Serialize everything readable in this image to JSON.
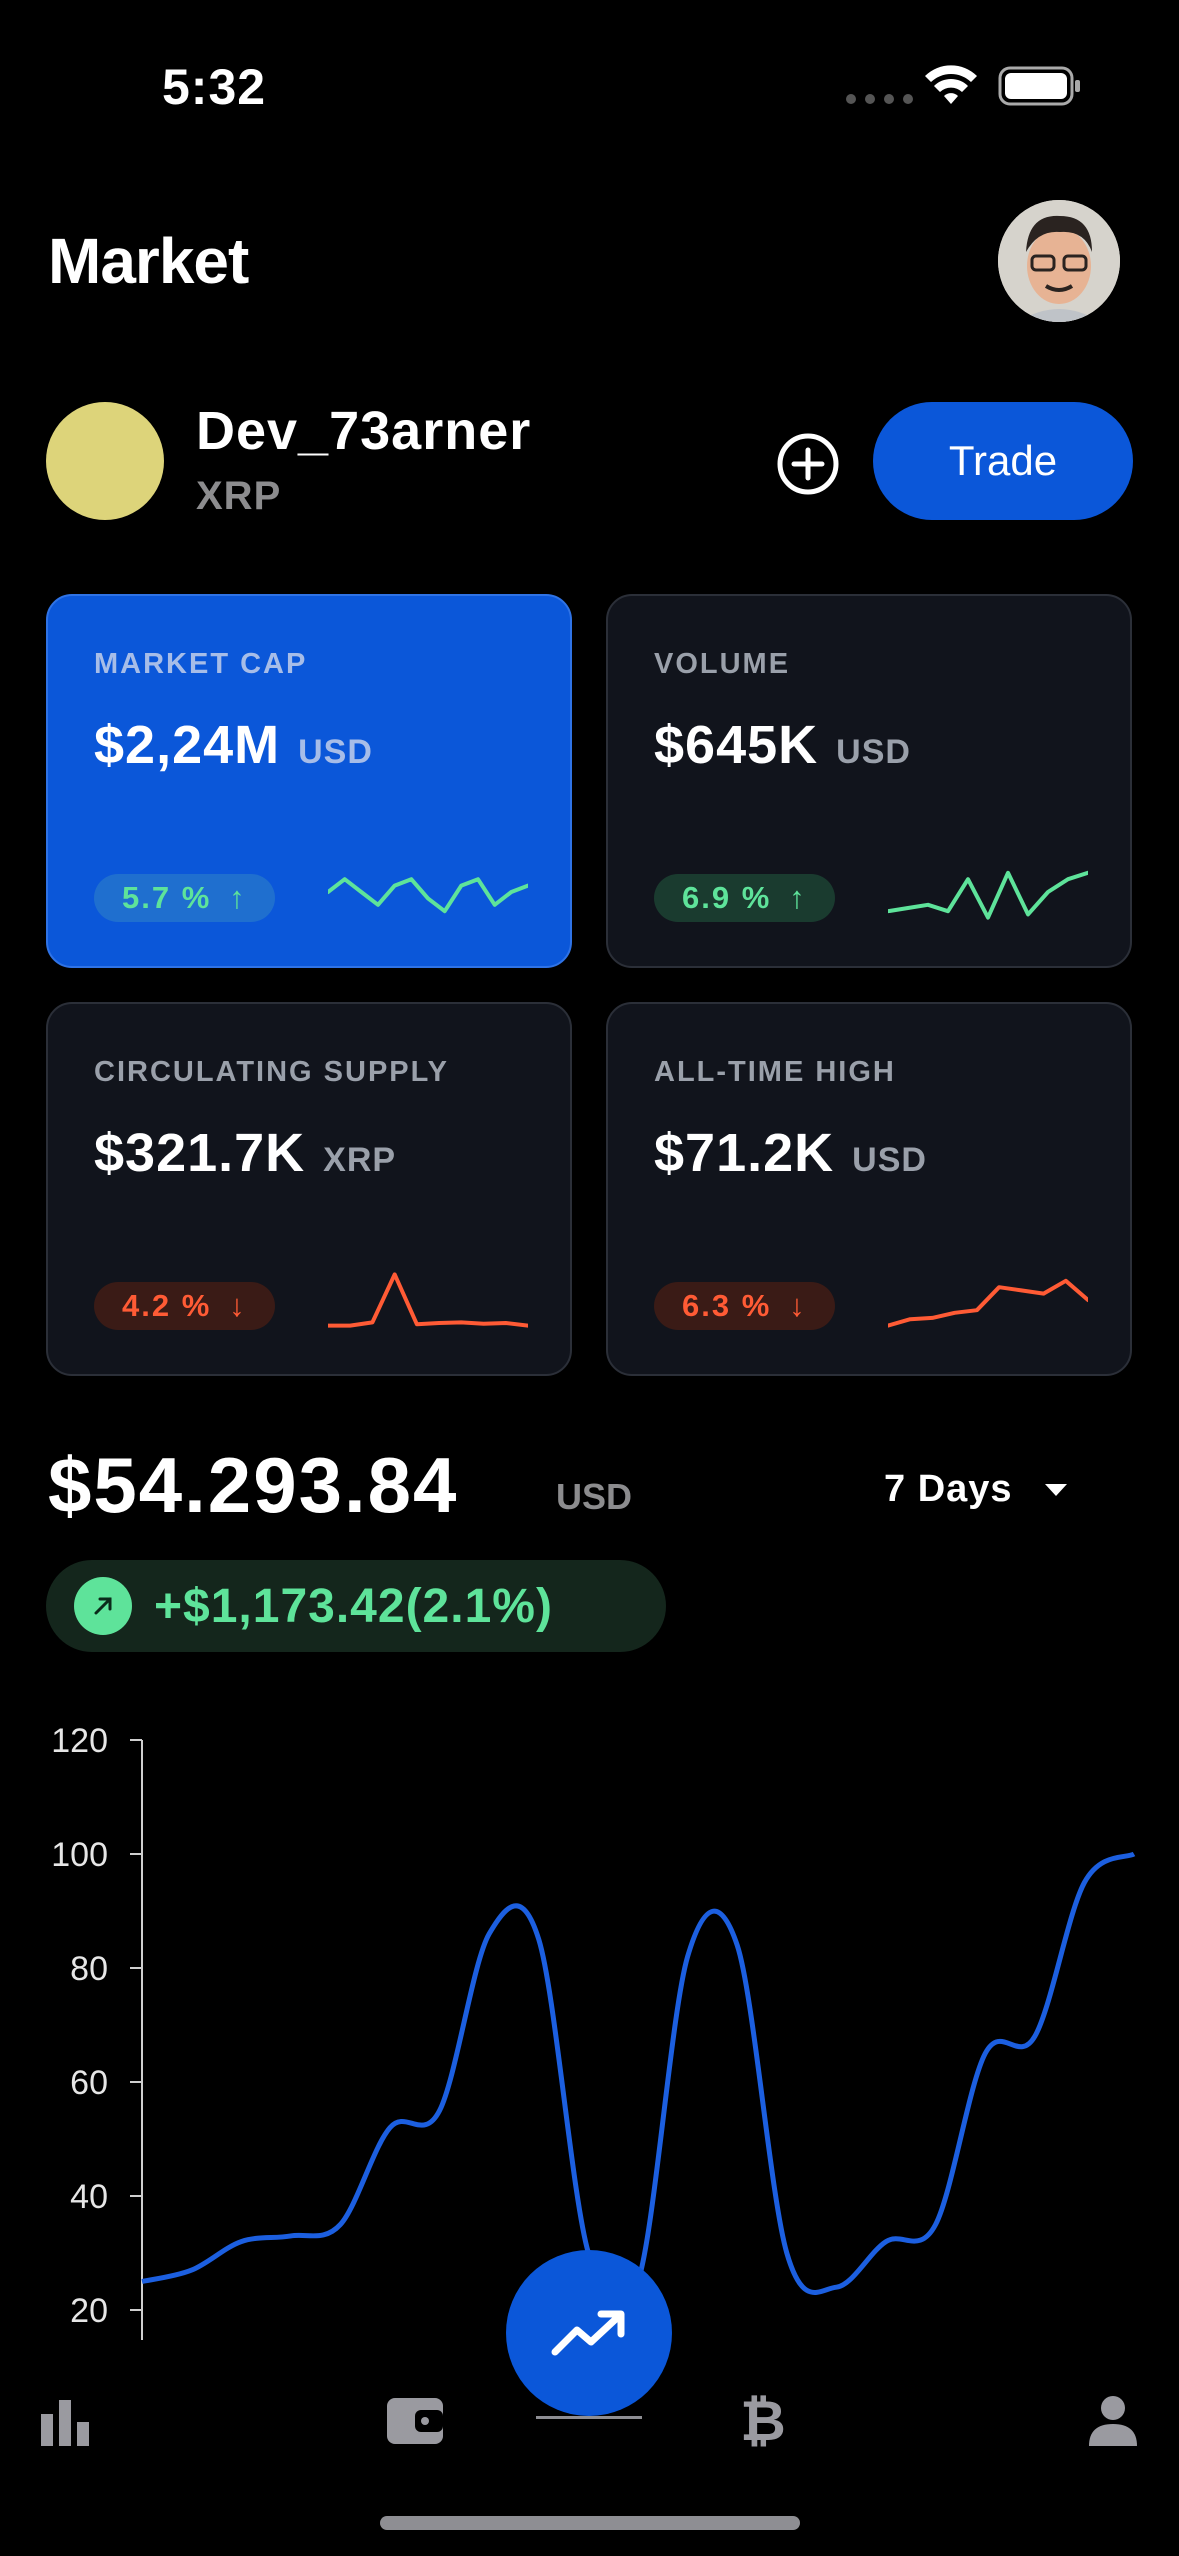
{
  "status_bar": {
    "time": "5:32"
  },
  "header": {
    "title": "Market"
  },
  "user": {
    "name": "Dev_73arner",
    "asset": "XRP",
    "trade_label": "Trade",
    "coin_color": "#ddd47a"
  },
  "cards": [
    {
      "label": "MARKET CAP",
      "value": "$2,24M",
      "unit": "USD",
      "change": "5.7 %",
      "direction": "up",
      "arrow": "↑",
      "spark": [
        0.5,
        0.3,
        0.5,
        0.7,
        0.4,
        0.3,
        0.6,
        0.8,
        0.4,
        0.3,
        0.7,
        0.5,
        0.4
      ]
    },
    {
      "label": "VOLUME",
      "value": "$645K",
      "unit": "USD",
      "change": "6.9 %",
      "direction": "up",
      "arrow": "↑",
      "spark": [
        0.8,
        0.75,
        0.7,
        0.8,
        0.3,
        0.9,
        0.2,
        0.85,
        0.5,
        0.3,
        0.2
      ]
    },
    {
      "label": "CIRCULATING SUPPLY",
      "value": "$321.7K",
      "unit": "XRP",
      "change": "4.2 %",
      "direction": "down",
      "arrow": "↓",
      "spark": [
        0.9,
        0.9,
        0.85,
        0.1,
        0.88,
        0.86,
        0.85,
        0.87,
        0.86,
        0.9
      ]
    },
    {
      "label": "ALL-TIME HIGH",
      "value": "$71.2K",
      "unit": "USD",
      "change": "6.3 %",
      "direction": "down",
      "arrow": "↓",
      "spark": [
        0.9,
        0.8,
        0.78,
        0.7,
        0.66,
        0.3,
        0.35,
        0.4,
        0.2,
        0.5
      ]
    }
  ],
  "price": {
    "value": "$54.293.84",
    "unit": "USD",
    "range": "7 Days",
    "change": "+$1,173.42(2.1%)"
  },
  "colors": {
    "accent": "#0b57d9",
    "up": "#5ee39a",
    "down": "#ff5b35",
    "line": "#1c5fe0"
  },
  "chart_data": {
    "type": "line",
    "y_ticks": [
      "120",
      "100",
      "80",
      "60",
      "40",
      "20"
    ],
    "ylim": [
      20,
      120
    ],
    "grid": false,
    "series": [
      {
        "values": [
          25,
          27,
          32,
          33,
          35,
          52,
          55,
          86,
          85,
          30,
          25,
          82,
          84,
          30,
          24,
          32,
          35,
          65,
          68,
          95,
          100
        ]
      }
    ]
  },
  "tabbar": {
    "items": [
      "stats",
      "wallet",
      "trade",
      "bitcoin",
      "profile"
    ]
  }
}
